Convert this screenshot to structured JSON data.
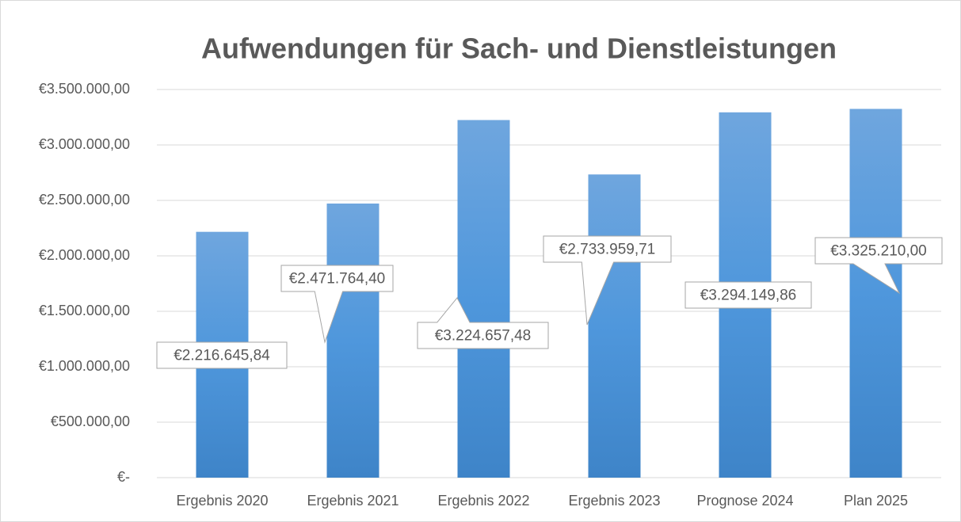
{
  "chart_data": {
    "type": "bar",
    "title": "Aufwendungen für Sach- und Dienstleistungen",
    "categories": [
      "Ergebnis 2020",
      "Ergebnis 2021",
      "Ergebnis 2022",
      "Ergebnis 2023",
      "Prognose 2024",
      "Plan 2025"
    ],
    "values": [
      2216645.84,
      2471764.4,
      3224657.48,
      2733959.71,
      3294149.86,
      3325210.0
    ],
    "value_labels": [
      "€2.216.645,84",
      "€2.471.764,40",
      "€3.224.657,48",
      "€2.733.959,71",
      "€3.294.149,86",
      "€3.325.210,00"
    ],
    "color": "#4a8fd6",
    "ylim": [
      0,
      3500000
    ],
    "yticks": [
      {
        "value": 0,
        "label": "€-"
      },
      {
        "value": 500000,
        "label": "€500.000,00"
      },
      {
        "value": 1000000,
        "label": "€1.000.000,00"
      },
      {
        "value": 1500000,
        "label": "€1.500.000,00"
      },
      {
        "value": 2000000,
        "label": "€2.000.000,00"
      },
      {
        "value": 2500000,
        "label": "€2.500.000,00"
      },
      {
        "value": 3000000,
        "label": "€3.000.000,00"
      },
      {
        "value": 3500000,
        "label": "€3.500.000,00"
      }
    ],
    "grid": true
  }
}
